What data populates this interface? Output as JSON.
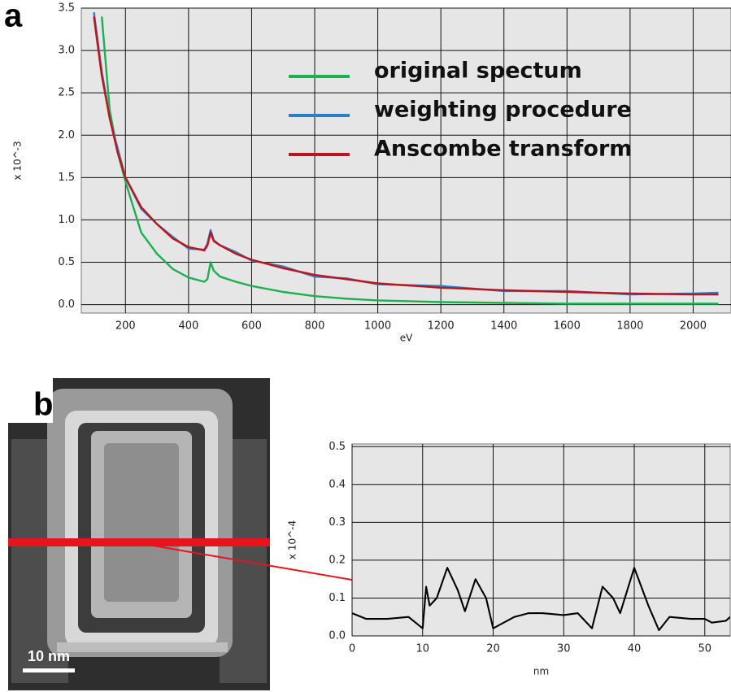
{
  "chart_data": [
    {
      "type": "line",
      "panel": "a",
      "ylabel": "x 10^-3",
      "xlabel": "eV",
      "x": [
        100,
        125,
        150,
        175,
        200,
        250,
        300,
        350,
        400,
        450,
        460,
        470,
        480,
        500,
        550,
        600,
        700,
        800,
        900,
        1000,
        1200,
        1400,
        1600,
        1800,
        2000,
        2080
      ],
      "series": [
        {
          "name": "original spectum",
          "color": "#1db04f",
          "values": [
            null,
            3.4,
            2.3,
            1.8,
            1.45,
            0.85,
            0.6,
            0.42,
            0.32,
            0.27,
            0.3,
            0.5,
            0.4,
            0.33,
            0.27,
            0.22,
            0.15,
            0.1,
            0.07,
            0.05,
            0.03,
            0.02,
            0.01,
            0.01,
            0.01,
            0.01
          ]
        },
        {
          "name": "weighting procedure",
          "color": "#2e7fc1",
          "values": [
            3.45,
            2.75,
            2.2,
            1.85,
            1.5,
            1.13,
            0.95,
            0.8,
            0.66,
            0.65,
            0.72,
            0.88,
            0.76,
            0.7,
            0.62,
            0.52,
            0.45,
            0.33,
            0.31,
            0.24,
            0.22,
            0.16,
            0.16,
            0.12,
            0.13,
            0.14
          ]
        },
        {
          "name": "Anscombe transform",
          "color": "#c0141c",
          "values": [
            3.4,
            2.7,
            2.2,
            1.8,
            1.5,
            1.15,
            0.95,
            0.78,
            0.68,
            0.64,
            0.7,
            0.85,
            0.75,
            0.7,
            0.6,
            0.53,
            0.43,
            0.35,
            0.3,
            0.25,
            0.2,
            0.17,
            0.15,
            0.13,
            0.12,
            0.12
          ]
        }
      ],
      "xlim": [
        60,
        2120
      ],
      "ylim": [
        -0.1,
        3.5
      ],
      "xticks": [
        200,
        400,
        600,
        800,
        1000,
        1200,
        1400,
        1600,
        1800,
        2000
      ],
      "yticks": [
        {
          "value": 0,
          "label": "0.0"
        },
        0.5,
        {
          "value": 1,
          "label": "1.0"
        },
        1.5,
        {
          "value": 2,
          "label": "2.0"
        },
        2.5,
        {
          "value": 3,
          "label": "3.0"
        },
        3.5
      ],
      "grid": true,
      "legend": "upper right"
    },
    {
      "type": "line",
      "panel": "b",
      "ylabel": "x 10^-4",
      "xlabel": "nm",
      "x": [
        0,
        2,
        5,
        8,
        10,
        10.5,
        11,
        12,
        13.5,
        15,
        16,
        17.5,
        19,
        20,
        21,
        23,
        25,
        27,
        30,
        32,
        33,
        34,
        35.5,
        37,
        38,
        40,
        42,
        43.5,
        45,
        48,
        50,
        51,
        53,
        53.6
      ],
      "values": [
        0.06,
        0.045,
        0.045,
        0.05,
        0.02,
        0.13,
        0.08,
        0.1,
        0.18,
        0.12,
        0.065,
        0.15,
        0.1,
        0.02,
        0.03,
        0.05,
        0.06,
        0.06,
        0.055,
        0.06,
        0.04,
        0.02,
        0.13,
        0.1,
        0.06,
        0.18,
        0.08,
        0.015,
        0.05,
        0.045,
        0.045,
        0.035,
        0.04,
        0.05
      ],
      "color": "#000000",
      "xlim": [
        0,
        53.6
      ],
      "ylim": [
        0,
        0.507
      ],
      "xticks": [
        0,
        10,
        20,
        30,
        40,
        50
      ],
      "yticks": [
        {
          "value": 0,
          "label": "0.0"
        },
        0.1,
        0.2,
        0.3,
        0.4,
        0.5
      ],
      "grid": true
    }
  ],
  "image": {
    "scale_bar": "10 nm"
  }
}
